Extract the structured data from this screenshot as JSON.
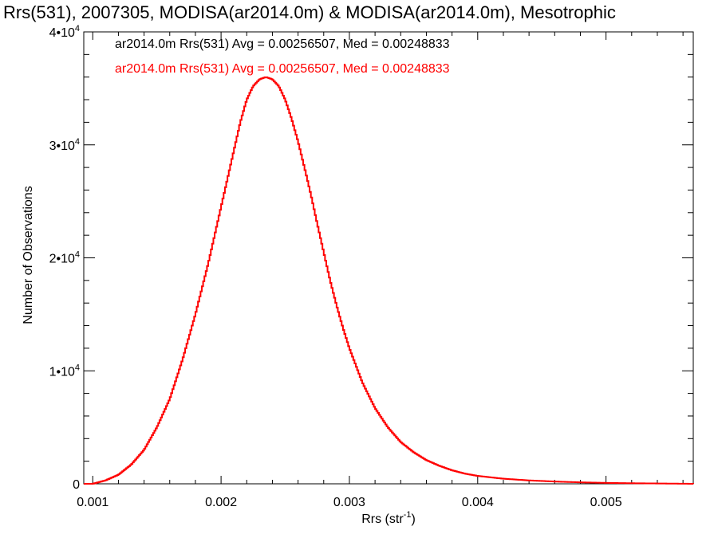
{
  "chart_data": {
    "type": "line",
    "title": "Rrs(531), 2007305, MODISA(ar2014.0m) & MODISA(ar2014.0m), Mesotrophic",
    "xlabel": "Rrs (str",
    "xlabel_sup": "-1",
    "xlabel_end": ")",
    "ylabel": "Number of Observations",
    "xlim": [
      0.00093,
      0.00568
    ],
    "ylim": [
      0,
      40000
    ],
    "x_ticks": [
      {
        "value": 0.001,
        "label": "0.001"
      },
      {
        "value": 0.002,
        "label": "0.002"
      },
      {
        "value": 0.003,
        "label": "0.003"
      },
      {
        "value": 0.004,
        "label": "0.004"
      },
      {
        "value": 0.005,
        "label": "0.005"
      }
    ],
    "y_ticks": [
      {
        "value": 0,
        "mantissa": "0",
        "exp": ""
      },
      {
        "value": 10000,
        "mantissa": "1•10",
        "exp": "4"
      },
      {
        "value": 20000,
        "mantissa": "2•10",
        "exp": "4"
      },
      {
        "value": 30000,
        "mantissa": "3•10",
        "exp": "4"
      },
      {
        "value": 40000,
        "mantissa": "4•10",
        "exp": "4"
      }
    ],
    "legend": [
      {
        "text": "ar2014.0m Rrs(531) Avg = 0.00256507, Med = 0.00248833",
        "color": "#000000"
      },
      {
        "text": "ar2014.0m Rrs(531) Avg = 0.00256507, Med = 0.00248833",
        "color": "#ff0000"
      }
    ],
    "legend_placement": "top-left",
    "grid": false,
    "series": [
      {
        "color": "#ff0000",
        "x": [
          0.00093,
          0.001,
          0.0011,
          0.0012,
          0.0013,
          0.0014,
          0.0015,
          0.0016,
          0.0017,
          0.0018,
          0.0019,
          0.002,
          0.00205,
          0.0021,
          0.00215,
          0.0022,
          0.00225,
          0.0023,
          0.00235,
          0.0024,
          0.00245,
          0.0025,
          0.00255,
          0.0026,
          0.00265,
          0.0027,
          0.00275,
          0.0028,
          0.00285,
          0.0029,
          0.00295,
          0.003,
          0.0031,
          0.0032,
          0.0033,
          0.0034,
          0.0035,
          0.0036,
          0.0037,
          0.0038,
          0.0039,
          0.004,
          0.0042,
          0.0044,
          0.0046,
          0.0048,
          0.005,
          0.0052,
          0.0054,
          0.00568
        ],
        "y": [
          0,
          0,
          300,
          800,
          1700,
          3000,
          5000,
          7500,
          11000,
          15000,
          19500,
          24500,
          27000,
          29500,
          32000,
          34000,
          35200,
          35800,
          36000,
          35800,
          35200,
          34000,
          32300,
          30300,
          28000,
          25600,
          23000,
          20500,
          18000,
          15800,
          13800,
          12000,
          9000,
          6700,
          5000,
          3700,
          2800,
          2100,
          1600,
          1200,
          900,
          700,
          450,
          300,
          200,
          130,
          80,
          50,
          30,
          0
        ]
      }
    ]
  }
}
